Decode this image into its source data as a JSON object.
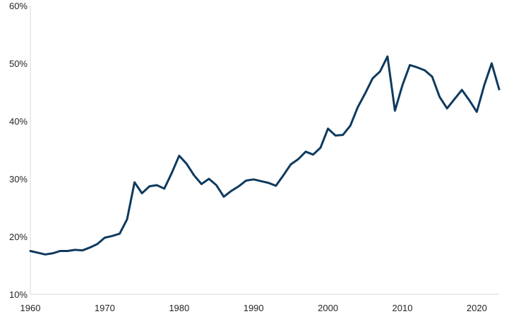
{
  "chart_data": {
    "type": "line",
    "title": "",
    "xlabel": "",
    "ylabel": "",
    "xlim": [
      1960,
      2023
    ],
    "ylim": [
      10,
      60
    ],
    "y_unit": "%",
    "grid": false,
    "legend": "none",
    "line_color": "#0e3a5e",
    "x_ticks": [
      1960,
      1970,
      1980,
      1990,
      2000,
      2010,
      2020
    ],
    "x_tick_labels": [
      "1960",
      "1970",
      "1980",
      "1990",
      "2000",
      "2010",
      "2020"
    ],
    "y_ticks": [
      10,
      20,
      30,
      40,
      50,
      60
    ],
    "y_tick_labels": [
      "10%",
      "20%",
      "30%",
      "40%",
      "50%",
      "60%"
    ],
    "series": [
      {
        "x": [
          1960,
          1961,
          1962,
          1963,
          1964,
          1965,
          1966,
          1967,
          1968,
          1969,
          1970,
          1971,
          1972,
          1973,
          1974,
          1975,
          1976,
          1977,
          1978,
          1979,
          1980,
          1981,
          1982,
          1983,
          1984,
          1985,
          1986,
          1987,
          1988,
          1989,
          1990,
          1991,
          1992,
          1993,
          1994,
          1995,
          1996,
          1997,
          1998,
          1999,
          2000,
          2001,
          2002,
          2003,
          2004,
          2005,
          2006,
          2007,
          2008,
          2009,
          2010,
          2011,
          2012,
          2013,
          2014,
          2015,
          2016,
          2017,
          2018,
          2019,
          2020,
          2021,
          2022,
          2023
        ],
        "values": [
          17.5,
          17.2,
          16.9,
          17.1,
          17.5,
          17.5,
          17.7,
          17.6,
          18.1,
          18.7,
          19.8,
          20.1,
          20.5,
          23.0,
          29.4,
          27.5,
          28.7,
          28.9,
          28.3,
          31.0,
          34.0,
          32.6,
          30.6,
          29.1,
          30.0,
          28.9,
          26.9,
          27.9,
          28.7,
          29.7,
          29.9,
          29.6,
          29.3,
          28.8,
          30.6,
          32.5,
          33.4,
          34.7,
          34.2,
          35.4,
          38.7,
          37.5,
          37.6,
          39.2,
          42.4,
          44.8,
          47.4,
          48.6,
          51.2,
          41.8,
          46.2,
          49.7,
          49.3,
          48.8,
          47.7,
          44.2,
          42.2,
          43.8,
          45.4,
          43.6,
          41.6,
          46.2,
          50.0,
          45.5
        ]
      }
    ]
  }
}
